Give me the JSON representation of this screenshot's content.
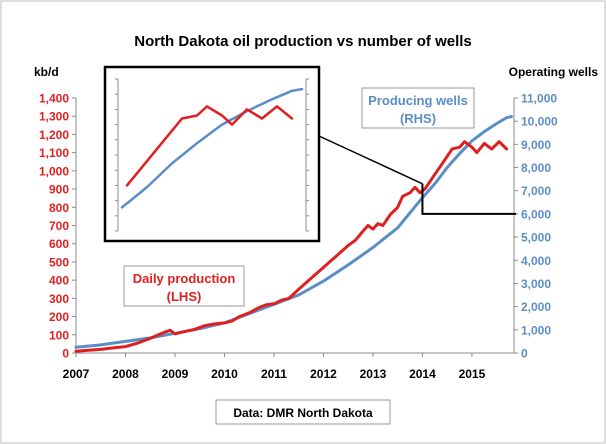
{
  "chart_data": {
    "type": "line",
    "title": "North Dakota oil production vs number of wells",
    "left_axis": {
      "unit_label": "kb/d",
      "ylim": [
        0,
        1400
      ],
      "ticks": [
        0,
        100,
        200,
        300,
        400,
        500,
        600,
        700,
        800,
        900,
        1000,
        1100,
        1200,
        1300,
        1400
      ],
      "tick_labels": [
        "0",
        "100",
        "200",
        "300",
        "400",
        "500",
        "600",
        "700",
        "800",
        "900",
        "1,000",
        "1,100",
        "1,200",
        "1,300",
        "1,400"
      ],
      "color": "#e02020"
    },
    "right_axis": {
      "unit_label": "Operating wells",
      "ylim": [
        0,
        11000
      ],
      "ticks": [
        0,
        1000,
        2000,
        3000,
        4000,
        5000,
        6000,
        7000,
        8000,
        9000,
        10000,
        11000
      ],
      "tick_labels": [
        "0",
        "1,000",
        "2,000",
        "3,000",
        "4,000",
        "5,000",
        "6,000",
        "7,000",
        "8,000",
        "9,000",
        "10,000",
        "11,000"
      ],
      "color": "#5b8ec6"
    },
    "x_axis": {
      "xlim": [
        2007,
        2015.85
      ],
      "ticks": [
        2007,
        2008,
        2009,
        2010,
        2011,
        2012,
        2013,
        2014,
        2015
      ],
      "tick_labels": [
        "2007",
        "2008",
        "2009",
        "2010",
        "2011",
        "2012",
        "2013",
        "2014",
        "2015"
      ]
    },
    "grid": false,
    "series": [
      {
        "name": "Daily production (LHS)",
        "axis": "left",
        "color": "#e02020",
        "x": [
          2007.0,
          2007.25,
          2007.5,
          2007.75,
          2008.0,
          2008.25,
          2008.5,
          2008.75,
          2008.9,
          2009.0,
          2009.15,
          2009.4,
          2009.6,
          2009.8,
          2010.0,
          2010.15,
          2010.3,
          2010.5,
          2010.7,
          2010.85,
          2011.0,
          2011.15,
          2011.3,
          2011.5,
          2011.75,
          2012.0,
          2012.25,
          2012.5,
          2012.65,
          2012.8,
          2012.9,
          2013.0,
          2013.1,
          2013.2,
          2013.35,
          2013.5,
          2013.6,
          2013.75,
          2013.85,
          2013.95,
          2014.05,
          2014.2,
          2014.35,
          2014.5,
          2014.6,
          2014.75,
          2014.85,
          2015.0,
          2015.1,
          2015.25,
          2015.4,
          2015.55,
          2015.7
        ],
        "y": [
          10,
          15,
          20,
          28,
          35,
          55,
          80,
          110,
          125,
          105,
          115,
          130,
          150,
          160,
          165,
          175,
          200,
          220,
          250,
          265,
          270,
          290,
          300,
          350,
          410,
          470,
          530,
          590,
          620,
          670,
          700,
          680,
          710,
          700,
          760,
          800,
          860,
          880,
          910,
          880,
          900,
          960,
          1020,
          1080,
          1120,
          1130,
          1160,
          1130,
          1100,
          1150,
          1120,
          1160,
          1120
        ],
        "smooth": false
      },
      {
        "name": "Producing wells (RHS)",
        "axis": "right",
        "color": "#5b8ec6",
        "x": [
          2007.0,
          2007.5,
          2008.0,
          2008.5,
          2009.0,
          2009.5,
          2010.0,
          2010.5,
          2011.0,
          2011.5,
          2012.0,
          2012.5,
          2013.0,
          2013.5,
          2014.0,
          2014.25,
          2014.5,
          2014.75,
          2015.0,
          2015.25,
          2015.5,
          2015.7,
          2015.8
        ],
        "y": [
          250,
          350,
          500,
          650,
          850,
          1050,
          1300,
          1700,
          2100,
          2500,
          3100,
          3800,
          4550,
          5400,
          6700,
          7300,
          8000,
          8600,
          9150,
          9550,
          9900,
          10150,
          10200
        ],
        "smooth": true
      }
    ],
    "annotations": {
      "producing_wells_label": [
        "Producing wells",
        "(RHS)"
      ],
      "daily_production_label": [
        "Daily production",
        "(LHS)"
      ],
      "source": "Data: DMR North Dakota"
    },
    "inset": {
      "description_of": "zoom of 2014–2015",
      "x_range": [
        2014.0,
        2015.8
      ],
      "left_ylim": [
        750,
        1250
      ],
      "right_ylim": [
        6000,
        10500
      ]
    }
  }
}
